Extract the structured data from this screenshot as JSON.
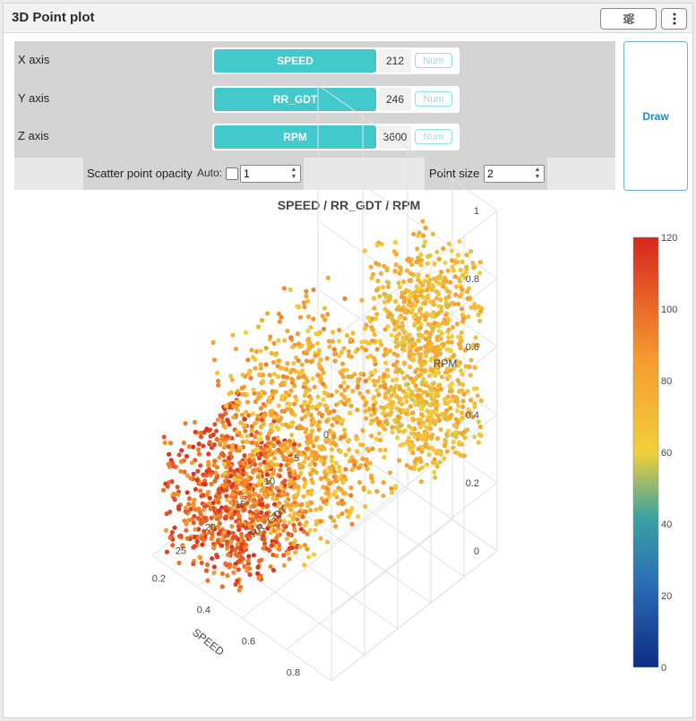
{
  "header": {
    "title": "3D Point plot",
    "settings_icon": "sliders-icon",
    "more_icon": "vertical-dots-icon"
  },
  "axes": [
    {
      "label": "X axis",
      "variable": "SPEED",
      "count": "212",
      "num_placeholder": "Num"
    },
    {
      "label": "Y axis",
      "variable": "RR_GDT",
      "count": "246",
      "num_placeholder": "Num"
    },
    {
      "label": "Z axis",
      "variable": "RPM",
      "count": "3600",
      "num_placeholder": "Num"
    }
  ],
  "options": {
    "opacity_label": "Scatter point opacity",
    "auto_label": "Auto:",
    "opacity_value": "1",
    "point_size_label": "Point size",
    "point_size_value": "2"
  },
  "draw_label": "Draw",
  "chart_data": {
    "type": "scatter",
    "title": "SPEED / RR_GDT / RPM",
    "xlabel": "SPEED",
    "ylabel": "RR_GDT",
    "zlabel": "RPM",
    "x_ticks": [
      "0.2",
      "0.4",
      "0.6",
      "0.8"
    ],
    "y_ticks": [
      "0",
      "5",
      "10",
      "15",
      "20",
      "25"
    ],
    "z_ticks": [
      "0",
      "0.2",
      "0.4",
      "0.6",
      "0.8",
      "1"
    ],
    "xlim": [
      0.1,
      0.9
    ],
    "ylim": [
      0,
      28
    ],
    "zlim": [
      0,
      1
    ],
    "colorscale": {
      "range": [
        0,
        120
      ],
      "ticks": [
        "0",
        "20",
        "40",
        "60",
        "80",
        "100",
        "120"
      ],
      "stops": [
        "#0d2c84",
        "#2b6fb5",
        "#3aa3a0",
        "#f2cf3b",
        "#f59a30",
        "#d7261e"
      ]
    },
    "clusters": [
      {
        "x_range": [
          0.55,
          0.85
        ],
        "y_range": [
          0,
          10
        ],
        "z_range": [
          0.3,
          0.85
        ],
        "value_range": [
          55,
          85
        ],
        "count": 900
      },
      {
        "x_range": [
          0.2,
          0.6
        ],
        "y_range": [
          5,
          22
        ],
        "z_range": [
          0.1,
          0.6
        ],
        "value_range": [
          60,
          95
        ],
        "count": 900
      },
      {
        "x_range": [
          0.1,
          0.45
        ],
        "y_range": [
          15,
          27
        ],
        "z_range": [
          0.0,
          0.35
        ],
        "value_range": [
          85,
          118
        ],
        "count": 700
      }
    ]
  }
}
